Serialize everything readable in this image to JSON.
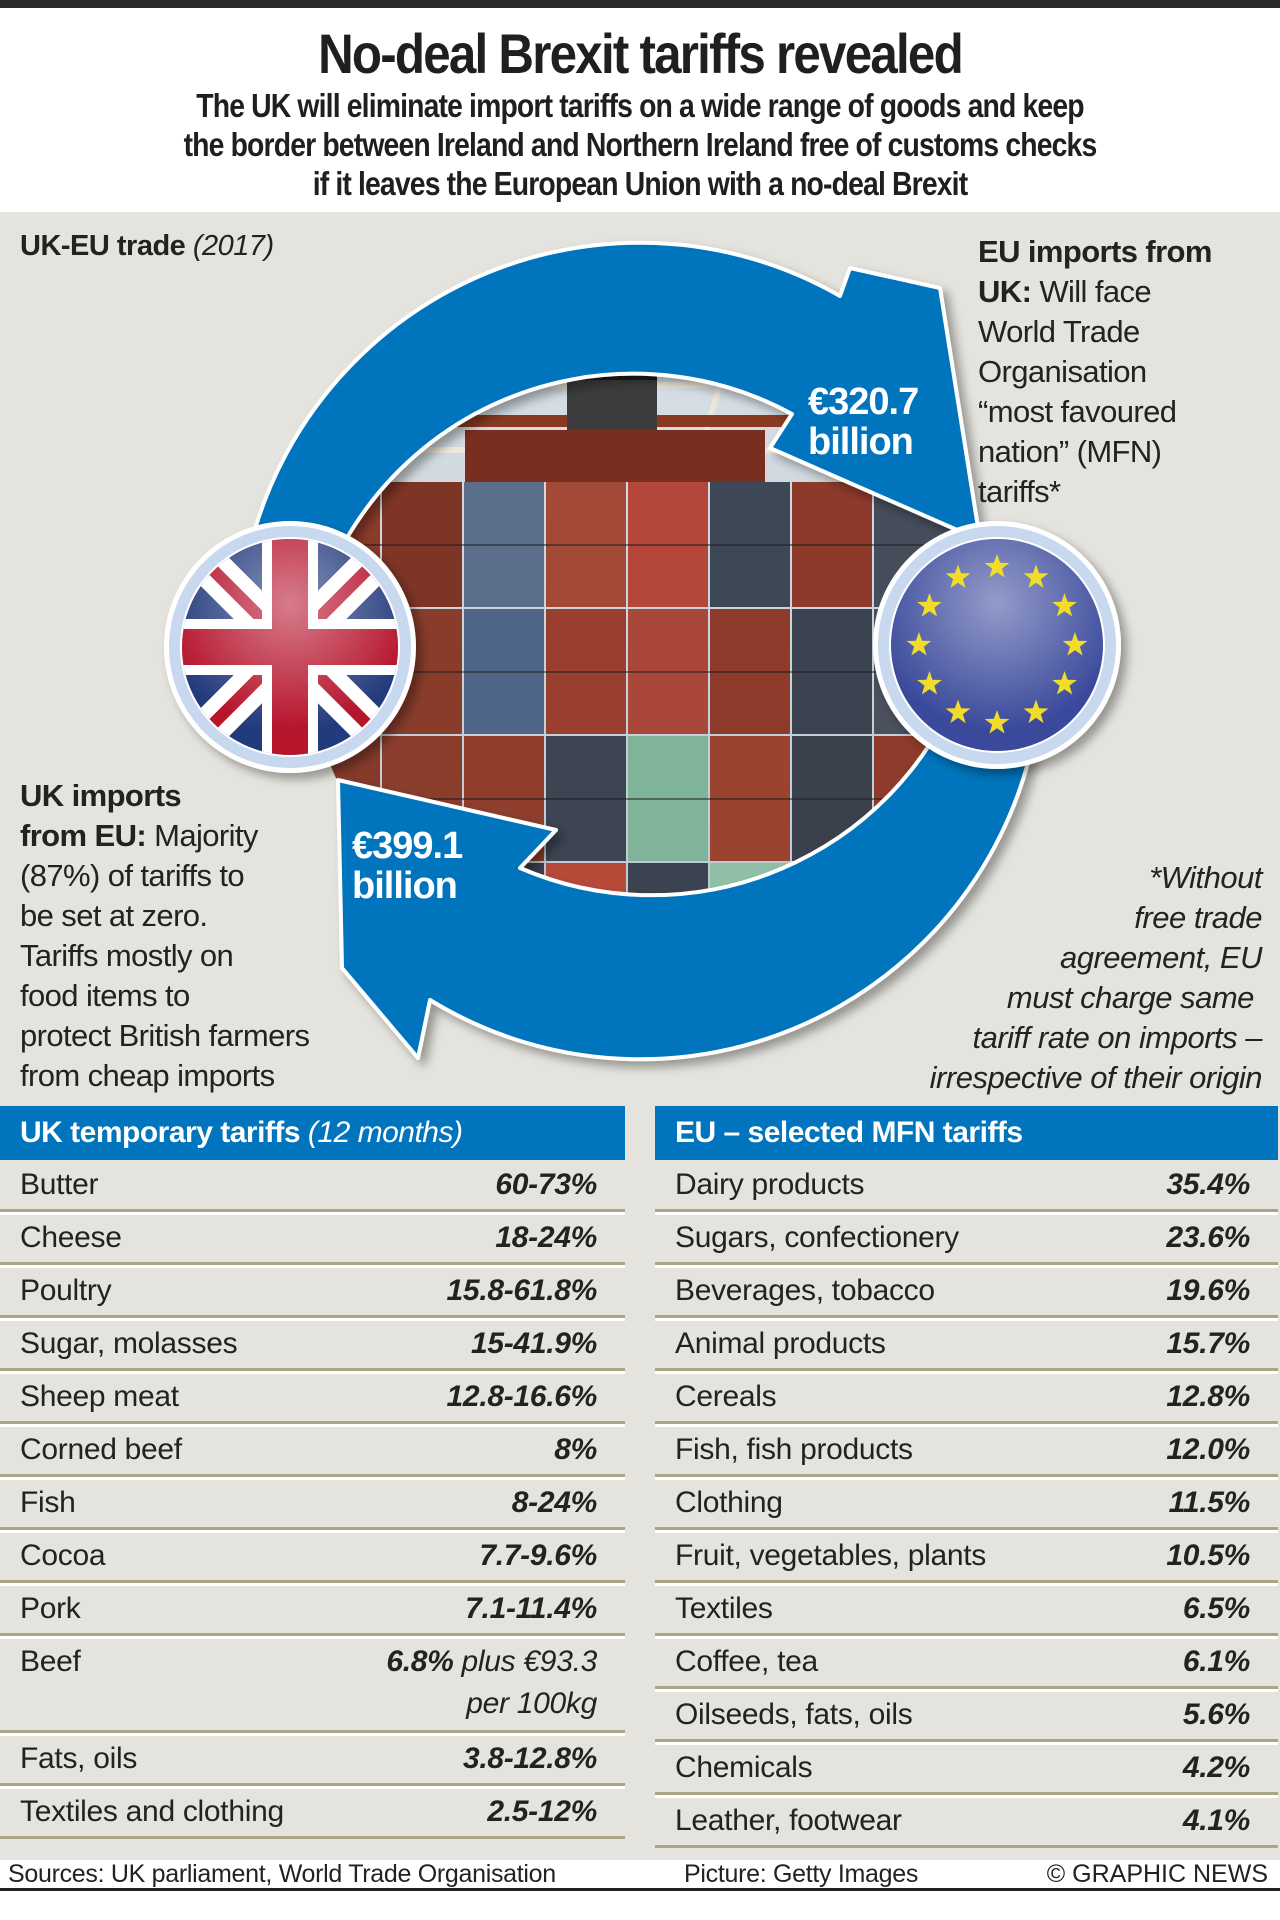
{
  "header": {
    "title": "No-deal Brexit tariffs revealed",
    "subtitle_lines": [
      "The UK will eliminate import tariffs on a wide range of goods and keep",
      "the border between Ireland and Northern Ireland free of customs checks",
      "if it leaves the European Union with a no-deal Brexit"
    ]
  },
  "trade": {
    "label": "UK-EU trade",
    "year": "(2017)",
    "eu_imports": {
      "heading": "EU imports from UK:",
      "text_lines": [
        "Will face",
        "World Trade",
        "Organisation",
        "“most favoured",
        "nation” (MFN)",
        "tariffs*"
      ]
    },
    "uk_imports": {
      "heading_line1": "UK imports",
      "heading_line2": "from EU:",
      "text_first": "Majority",
      "text_lines": [
        "(87%) of tariffs to",
        "be set at zero.",
        "Tariffs mostly on",
        "food items to",
        "protect British farmers",
        "from cheap imports"
      ]
    },
    "uk_to_eu_amount": "€320.7",
    "uk_to_eu_unit": "billion",
    "eu_to_uk_amount": "€399.1",
    "eu_to_uk_unit": "billion",
    "footnote_lines": [
      "*Without",
      "free trade",
      "agreement, EU",
      "must charge same ",
      "tariff rate on imports –",
      "irrespective of their origin"
    ],
    "flags": {
      "left": "uk-flag",
      "right": "eu-flag"
    },
    "colors": {
      "arrow": "#0075bd",
      "ring": "#c8d8ee",
      "eu_blue": "#3b4a9c",
      "eu_star": "#f2dc2a",
      "uk_red": "#b5122b",
      "uk_blue": "#233a7c"
    }
  },
  "uk_table": {
    "title": "UK temporary tariffs",
    "title_note": "(12 months)",
    "rows": [
      {
        "item": "Butter",
        "value": "60-73%"
      },
      {
        "item": "Cheese",
        "value": "18-24%"
      },
      {
        "item": "Poultry",
        "value": "15.8-61.8%"
      },
      {
        "item": "Sugar, molasses",
        "value": "15-41.9%"
      },
      {
        "item": "Sheep meat",
        "value": "12.8-16.6%"
      },
      {
        "item": "Corned beef",
        "value": "8%"
      },
      {
        "item": "Fish",
        "value": "8-24%"
      },
      {
        "item": "Cocoa",
        "value": "7.7-9.6%"
      },
      {
        "item": "Pork",
        "value": "7.1-11.4%"
      },
      {
        "item": "Beef",
        "value": "6.8%",
        "value_extra": " plus €93.3",
        "value_line2": "per 100kg"
      },
      {
        "item": "Fats, oils",
        "value": "3.8-12.8%"
      },
      {
        "item": "Textiles and clothing",
        "value": "2.5-12%"
      }
    ]
  },
  "eu_table": {
    "title": "EU – selected MFN tariffs",
    "rows": [
      {
        "item": "Dairy products",
        "value": "35.4%"
      },
      {
        "item": "Sugars,  confectionery",
        "value": "23.6%"
      },
      {
        "item": "Beverages, tobacco",
        "value": "19.6%"
      },
      {
        "item": "Animal products",
        "value": "15.7%"
      },
      {
        "item": "Cereals",
        "value": "12.8%"
      },
      {
        "item": "Fish, fish products",
        "value": "12.0%"
      },
      {
        "item": "Clothing",
        "value": "11.5%"
      },
      {
        "item": "Fruit, vegetables, plants",
        "value": "10.5%"
      },
      {
        "item": "Textiles",
        "value": "6.5%"
      },
      {
        "item": "Coffee, tea",
        "value": "6.1%"
      },
      {
        "item": "Oilseeds, fats, oils",
        "value": "5.6%"
      },
      {
        "item": "Chemicals",
        "value": "4.2%"
      },
      {
        "item": "Leather, footwear",
        "value": "4.1%"
      }
    ]
  },
  "footer": {
    "sources": "Sources: UK parliament, World Trade Organisation",
    "picture": "Picture: Getty Images",
    "copyright": "© GRAPHIC NEWS"
  }
}
